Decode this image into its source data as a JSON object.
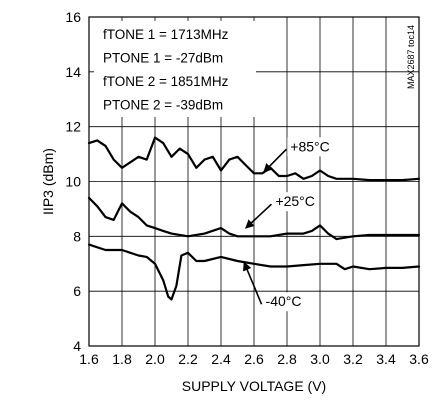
{
  "chart_data": {
    "type": "line",
    "xlabel": "SUPPLY VOLTAGE (V)",
    "ylabel": "IIP3 (dBm)",
    "xlim": [
      1.6,
      3.6
    ],
    "ylim": [
      4,
      16
    ],
    "xticks": [
      "1.6",
      "1.8",
      "2.0",
      "2.2",
      "2.4",
      "2.6",
      "2.8",
      "3.0",
      "3.2",
      "3.4",
      "3.6"
    ],
    "yticks": [
      "4",
      "6",
      "8",
      "10",
      "12",
      "14",
      "16"
    ],
    "grid": true,
    "annotations": [
      "fTONE 1 = 1713MHz",
      "PTONE 1 = -27dBm",
      "fTONE 2 = 1851MHz",
      "PTONE 2 = -39dBm"
    ],
    "figure_id": "MAX2687 toc14",
    "series": [
      {
        "name": "+85°C",
        "x": [
          1.6,
          1.65,
          1.7,
          1.75,
          1.8,
          1.85,
          1.9,
          1.95,
          2.0,
          2.05,
          2.1,
          2.15,
          2.2,
          2.25,
          2.3,
          2.35,
          2.4,
          2.45,
          2.5,
          2.55,
          2.6,
          2.65,
          2.7,
          2.75,
          2.8,
          2.85,
          2.9,
          2.95,
          3.0,
          3.05,
          3.1,
          3.15,
          3.2,
          3.3,
          3.4,
          3.5,
          3.6
        ],
        "y": [
          11.4,
          11.5,
          11.3,
          10.8,
          10.5,
          10.7,
          10.9,
          10.8,
          11.6,
          11.4,
          10.9,
          11.2,
          11.0,
          10.5,
          10.8,
          10.9,
          10.4,
          10.8,
          10.9,
          10.6,
          10.3,
          10.3,
          10.5,
          10.2,
          10.2,
          10.3,
          10.1,
          10.2,
          10.4,
          10.2,
          10.1,
          10.1,
          10.1,
          10.05,
          10.05,
          10.05,
          10.1
        ]
      },
      {
        "name": "+25°C",
        "x": [
          1.6,
          1.65,
          1.7,
          1.75,
          1.8,
          1.85,
          1.9,
          1.95,
          2.0,
          2.05,
          2.1,
          2.2,
          2.3,
          2.4,
          2.45,
          2.5,
          2.6,
          2.7,
          2.8,
          2.9,
          2.95,
          3.0,
          3.05,
          3.1,
          3.2,
          3.3,
          3.4,
          3.5,
          3.6
        ],
        "y": [
          9.4,
          9.1,
          8.7,
          8.6,
          9.2,
          8.9,
          8.7,
          8.4,
          8.3,
          8.2,
          8.1,
          8.0,
          8.1,
          8.3,
          8.1,
          8.0,
          8.0,
          8.0,
          8.1,
          8.1,
          8.2,
          8.4,
          8.1,
          7.9,
          8.0,
          8.05,
          8.05,
          8.05,
          8.05
        ]
      },
      {
        "name": "-40°C",
        "x": [
          1.6,
          1.7,
          1.8,
          1.9,
          1.95,
          2.0,
          2.05,
          2.08,
          2.1,
          2.13,
          2.16,
          2.2,
          2.25,
          2.3,
          2.4,
          2.5,
          2.6,
          2.7,
          2.8,
          2.9,
          3.0,
          3.1,
          3.15,
          3.2,
          3.3,
          3.4,
          3.5,
          3.6
        ],
        "y": [
          7.7,
          7.5,
          7.5,
          7.3,
          7.25,
          7.0,
          6.4,
          5.8,
          5.7,
          6.2,
          7.3,
          7.4,
          7.1,
          7.1,
          7.25,
          7.1,
          7.0,
          6.9,
          6.9,
          6.95,
          7.0,
          7.0,
          6.8,
          6.9,
          6.8,
          6.85,
          6.85,
          6.9
        ]
      }
    ],
    "series_labels": [
      {
        "text": "+85°C",
        "x": 2.82,
        "y": 11.1,
        "arrow_to_x": 2.66,
        "arrow_to_y": 10.35
      },
      {
        "text": "+25°C",
        "x": 2.73,
        "y": 9.1,
        "arrow_to_x": 2.55,
        "arrow_to_y": 8.3
      },
      {
        "text": "-40°C",
        "x": 2.67,
        "y": 5.45,
        "arrow_to_x": 2.54,
        "arrow_to_y": 7.05
      }
    ]
  }
}
